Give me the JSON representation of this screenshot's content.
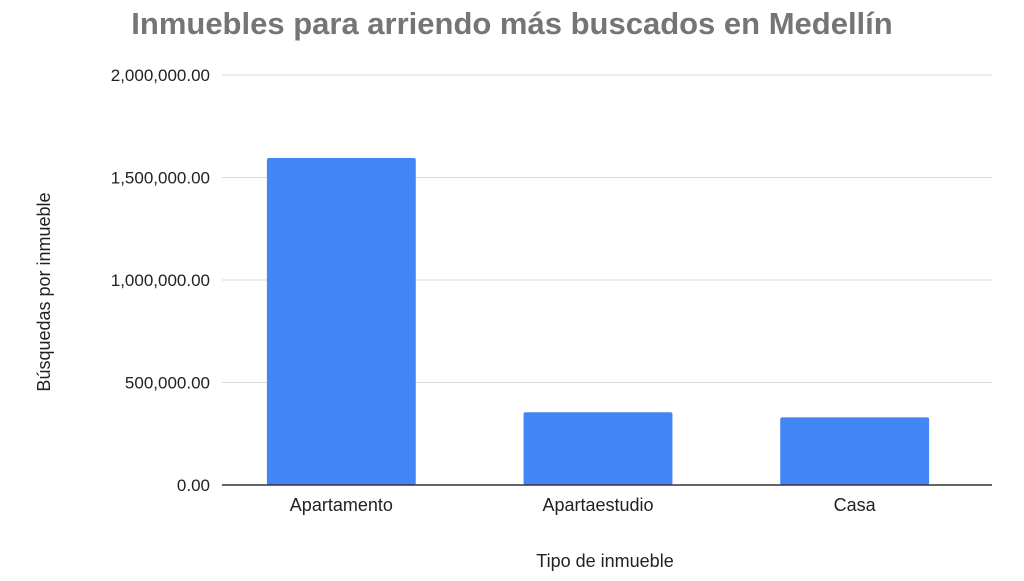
{
  "chart_data": {
    "type": "bar",
    "title": "Inmuebles para arriendo más buscados en Medellín",
    "xlabel": "Tipo de inmueble",
    "ylabel": "Búsquedas por inmueble",
    "categories": [
      "Apartamento",
      "Apartaestudio",
      "Casa"
    ],
    "series": [
      {
        "values": [
          1595000,
          355000,
          330000
        ]
      }
    ],
    "ylim": [
      0,
      2000000
    ],
    "yticks": [
      {
        "value": 0,
        "label": "0.00"
      },
      {
        "value": 500000,
        "label": "500,000.00"
      },
      {
        "value": 1000000,
        "label": "1,000,000.00"
      },
      {
        "value": 1500000,
        "label": "1,500,000.00"
      },
      {
        "value": 2000000,
        "label": "2,000,000.00"
      }
    ],
    "grid": true,
    "legend": "none",
    "colors": {
      "bar": "#4285f4",
      "title": "#757575",
      "grid": "#d9d9d9",
      "axis": "#333333",
      "text": "#222222"
    }
  }
}
